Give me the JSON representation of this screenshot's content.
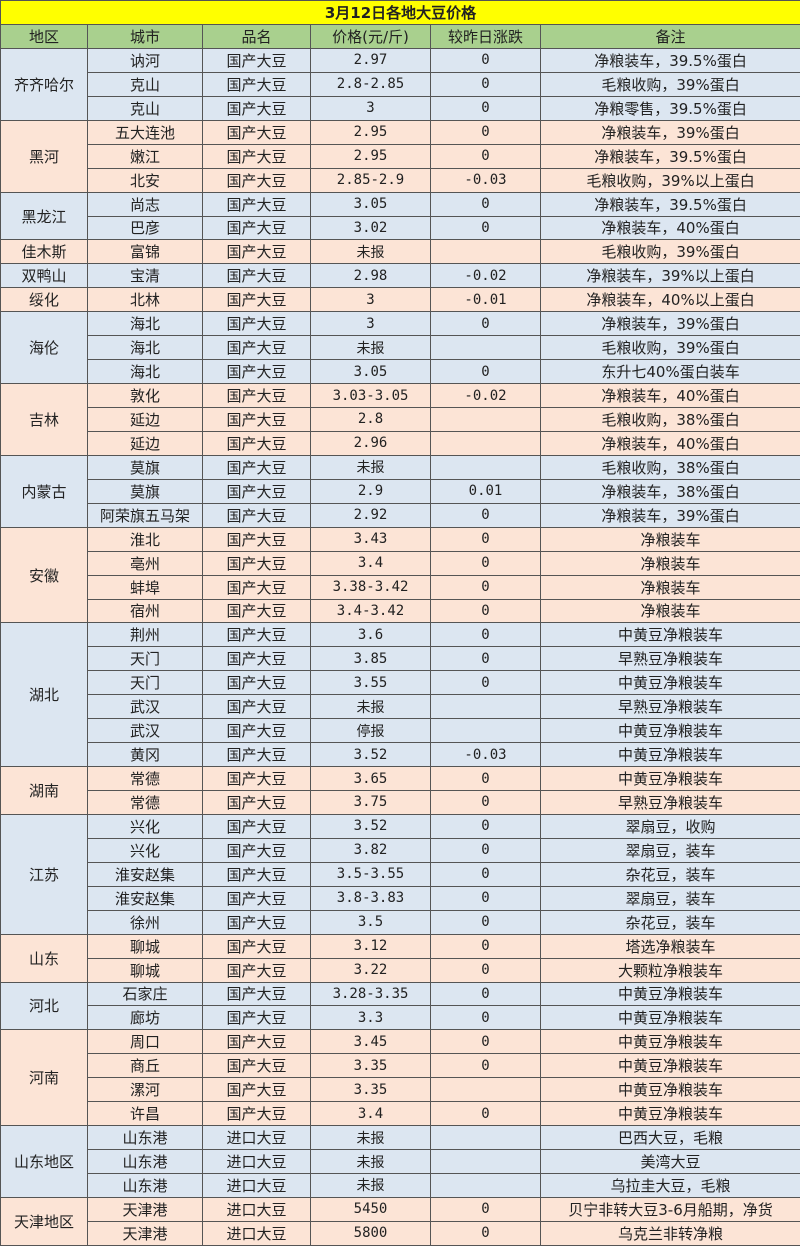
{
  "title": "3月12日各地大豆价格",
  "headers": [
    "地区",
    "城市",
    "品名",
    "价格(元/斤)",
    "较昨日涨跌",
    "备注"
  ],
  "colors": {
    "title": "#ffff00",
    "header": "#a9d08e",
    "blue": "#dce6f1",
    "peach": "#fce4d6"
  },
  "regions": [
    {
      "name": "齐齐哈尔",
      "rows": [
        {
          "city": "讷河",
          "product": "国产大豆",
          "price": "2.97",
          "change": "0",
          "note": "净粮装车，39.5%蛋白"
        },
        {
          "city": "克山",
          "product": "国产大豆",
          "price": "2.8-2.85",
          "change": "0",
          "note": "毛粮收购，39%蛋白"
        },
        {
          "city": "克山",
          "product": "国产大豆",
          "price": "3",
          "change": "0",
          "note": "净粮零售，39.5%蛋白"
        }
      ]
    },
    {
      "name": "黑河",
      "rows": [
        {
          "city": "五大连池",
          "product": "国产大豆",
          "price": "2.95",
          "change": "0",
          "note": "净粮装车，39%蛋白"
        },
        {
          "city": "嫩江",
          "product": "国产大豆",
          "price": "2.95",
          "change": "0",
          "note": "净粮装车，39.5%蛋白"
        },
        {
          "city": "北安",
          "product": "国产大豆",
          "price": "2.85-2.9",
          "change": "-0.03",
          "note": "毛粮收购，39%以上蛋白"
        }
      ]
    },
    {
      "name": "黑龙江",
      "rows": [
        {
          "city": "尚志",
          "product": "国产大豆",
          "price": "3.05",
          "change": "0",
          "note": "净粮装车，39.5%蛋白"
        },
        {
          "city": "巴彦",
          "product": "国产大豆",
          "price": "3.02",
          "change": "0",
          "note": "净粮装车，40%蛋白"
        }
      ]
    },
    {
      "name": "佳木斯",
      "rows": [
        {
          "city": "富锦",
          "product": "国产大豆",
          "price": "未报",
          "change": "",
          "note": "毛粮收购，39%蛋白"
        }
      ]
    },
    {
      "name": "双鸭山",
      "rows": [
        {
          "city": "宝清",
          "product": "国产大豆",
          "price": "2.98",
          "change": "-0.02",
          "note": "净粮装车，39%以上蛋白"
        }
      ]
    },
    {
      "name": "绥化",
      "rows": [
        {
          "city": "北林",
          "product": "国产大豆",
          "price": "3",
          "change": "-0.01",
          "note": "净粮装车，40%以上蛋白"
        }
      ]
    },
    {
      "name": "海伦",
      "rows": [
        {
          "city": "海北",
          "product": "国产大豆",
          "price": "3",
          "change": "0",
          "note": "净粮装车，39%蛋白"
        },
        {
          "city": "海北",
          "product": "国产大豆",
          "price": "未报",
          "change": "",
          "note": "毛粮收购，39%蛋白"
        },
        {
          "city": "海北",
          "product": "国产大豆",
          "price": "3.05",
          "change": "0",
          "note": "东升七40%蛋白装车"
        }
      ]
    },
    {
      "name": "吉林",
      "rows": [
        {
          "city": "敦化",
          "product": "国产大豆",
          "price": "3.03-3.05",
          "change": "-0.02",
          "note": "净粮装车，40%蛋白"
        },
        {
          "city": "延边",
          "product": "国产大豆",
          "price": "2.8",
          "change": "",
          "note": "毛粮收购，38%蛋白"
        },
        {
          "city": "延边",
          "product": "国产大豆",
          "price": "2.96",
          "change": "",
          "note": "净粮装车，40%蛋白"
        }
      ]
    },
    {
      "name": "内蒙古",
      "rows": [
        {
          "city": "莫旗",
          "product": "国产大豆",
          "price": "未报",
          "change": "",
          "note": "毛粮收购，38%蛋白"
        },
        {
          "city": "莫旗",
          "product": "国产大豆",
          "price": "2.9",
          "change": "0.01",
          "note": "净粮装车，38%蛋白"
        },
        {
          "city": "阿荣旗五马架",
          "product": "国产大豆",
          "price": "2.92",
          "change": "0",
          "note": "净粮装车，39%蛋白"
        }
      ]
    },
    {
      "name": "安徽",
      "rows": [
        {
          "city": "淮北",
          "product": "国产大豆",
          "price": "3.43",
          "change": "0",
          "note": "净粮装车"
        },
        {
          "city": "亳州",
          "product": "国产大豆",
          "price": "3.4",
          "change": "0",
          "note": "净粮装车"
        },
        {
          "city": "蚌埠",
          "product": "国产大豆",
          "price": "3.38-3.42",
          "change": "0",
          "note": "净粮装车"
        },
        {
          "city": "宿州",
          "product": "国产大豆",
          "price": "3.4-3.42",
          "change": "0",
          "note": "净粮装车"
        }
      ]
    },
    {
      "name": "湖北",
      "rows": [
        {
          "city": "荆州",
          "product": "国产大豆",
          "price": "3.6",
          "change": "0",
          "note": "中黄豆净粮装车"
        },
        {
          "city": "天门",
          "product": "国产大豆",
          "price": "3.85",
          "change": "0",
          "note": "早熟豆净粮装车"
        },
        {
          "city": "天门",
          "product": "国产大豆",
          "price": "3.55",
          "change": "0",
          "note": "中黄豆净粮装车"
        },
        {
          "city": "武汉",
          "product": "国产大豆",
          "price": "未报",
          "change": "",
          "note": "早熟豆净粮装车"
        },
        {
          "city": "武汉",
          "product": "国产大豆",
          "price": "停报",
          "change": "",
          "note": "中黄豆净粮装车"
        },
        {
          "city": "黄冈",
          "product": "国产大豆",
          "price": "3.52",
          "change": "-0.03",
          "note": "中黄豆净粮装车"
        }
      ]
    },
    {
      "name": "湖南",
      "rows": [
        {
          "city": "常德",
          "product": "国产大豆",
          "price": "3.65",
          "change": "0",
          "note": "中黄豆净粮装车"
        },
        {
          "city": "常德",
          "product": "国产大豆",
          "price": "3.75",
          "change": "0",
          "note": "早熟豆净粮装车"
        }
      ]
    },
    {
      "name": "江苏",
      "rows": [
        {
          "city": "兴化",
          "product": "国产大豆",
          "price": "3.52",
          "change": "0",
          "note": "翠扇豆，收购"
        },
        {
          "city": "兴化",
          "product": "国产大豆",
          "price": "3.82",
          "change": "0",
          "note": "翠扇豆，装车"
        },
        {
          "city": "淮安赵集",
          "product": "国产大豆",
          "price": "3.5-3.55",
          "change": "0",
          "note": "杂花豆，装车"
        },
        {
          "city": "淮安赵集",
          "product": "国产大豆",
          "price": "3.8-3.83",
          "change": "0",
          "note": "翠扇豆，装车"
        },
        {
          "city": "徐州",
          "product": "国产大豆",
          "price": "3.5",
          "change": "0",
          "note": "杂花豆，装车"
        }
      ]
    },
    {
      "name": "山东",
      "rows": [
        {
          "city": "聊城",
          "product": "国产大豆",
          "price": "3.12",
          "change": "0",
          "note": "塔选净粮装车"
        },
        {
          "city": "聊城",
          "product": "国产大豆",
          "price": "3.22",
          "change": "0",
          "note": "大颗粒净粮装车"
        }
      ]
    },
    {
      "name": "河北",
      "rows": [
        {
          "city": "石家庄",
          "product": "国产大豆",
          "price": "3.28-3.35",
          "change": "0",
          "note": "中黄豆净粮装车"
        },
        {
          "city": "廊坊",
          "product": "国产大豆",
          "price": "3.3",
          "change": "0",
          "note": "中黄豆净粮装车"
        }
      ]
    },
    {
      "name": "河南",
      "rows": [
        {
          "city": "周口",
          "product": "国产大豆",
          "price": "3.45",
          "change": "0",
          "note": "中黄豆净粮装车"
        },
        {
          "city": "商丘",
          "product": "国产大豆",
          "price": "3.35",
          "change": "0",
          "note": "中黄豆净粮装车"
        },
        {
          "city": "漯河",
          "product": "国产大豆",
          "price": "3.35",
          "change": "",
          "note": "中黄豆净粮装车"
        },
        {
          "city": "许昌",
          "product": "国产大豆",
          "price": "3.4",
          "change": "0",
          "note": "中黄豆净粮装车"
        }
      ]
    },
    {
      "name": "山东地区",
      "rows": [
        {
          "city": "山东港",
          "product": "进口大豆",
          "price": "未报",
          "change": "",
          "note": "巴西大豆，毛粮"
        },
        {
          "city": "山东港",
          "product": "进口大豆",
          "price": "未报",
          "change": "",
          "note": "美湾大豆"
        },
        {
          "city": "山东港",
          "product": "进口大豆",
          "price": "未报",
          "change": "",
          "note": "乌拉圭大豆，毛粮"
        }
      ]
    },
    {
      "name": "天津地区",
      "rows": [
        {
          "city": "天津港",
          "product": "进口大豆",
          "price": "5450",
          "change": "0",
          "note": "贝宁非转大豆3-6月船期，净货"
        },
        {
          "city": "天津港",
          "product": "进口大豆",
          "price": "5800",
          "change": "0",
          "note": "乌克兰非转净粮"
        }
      ]
    }
  ]
}
